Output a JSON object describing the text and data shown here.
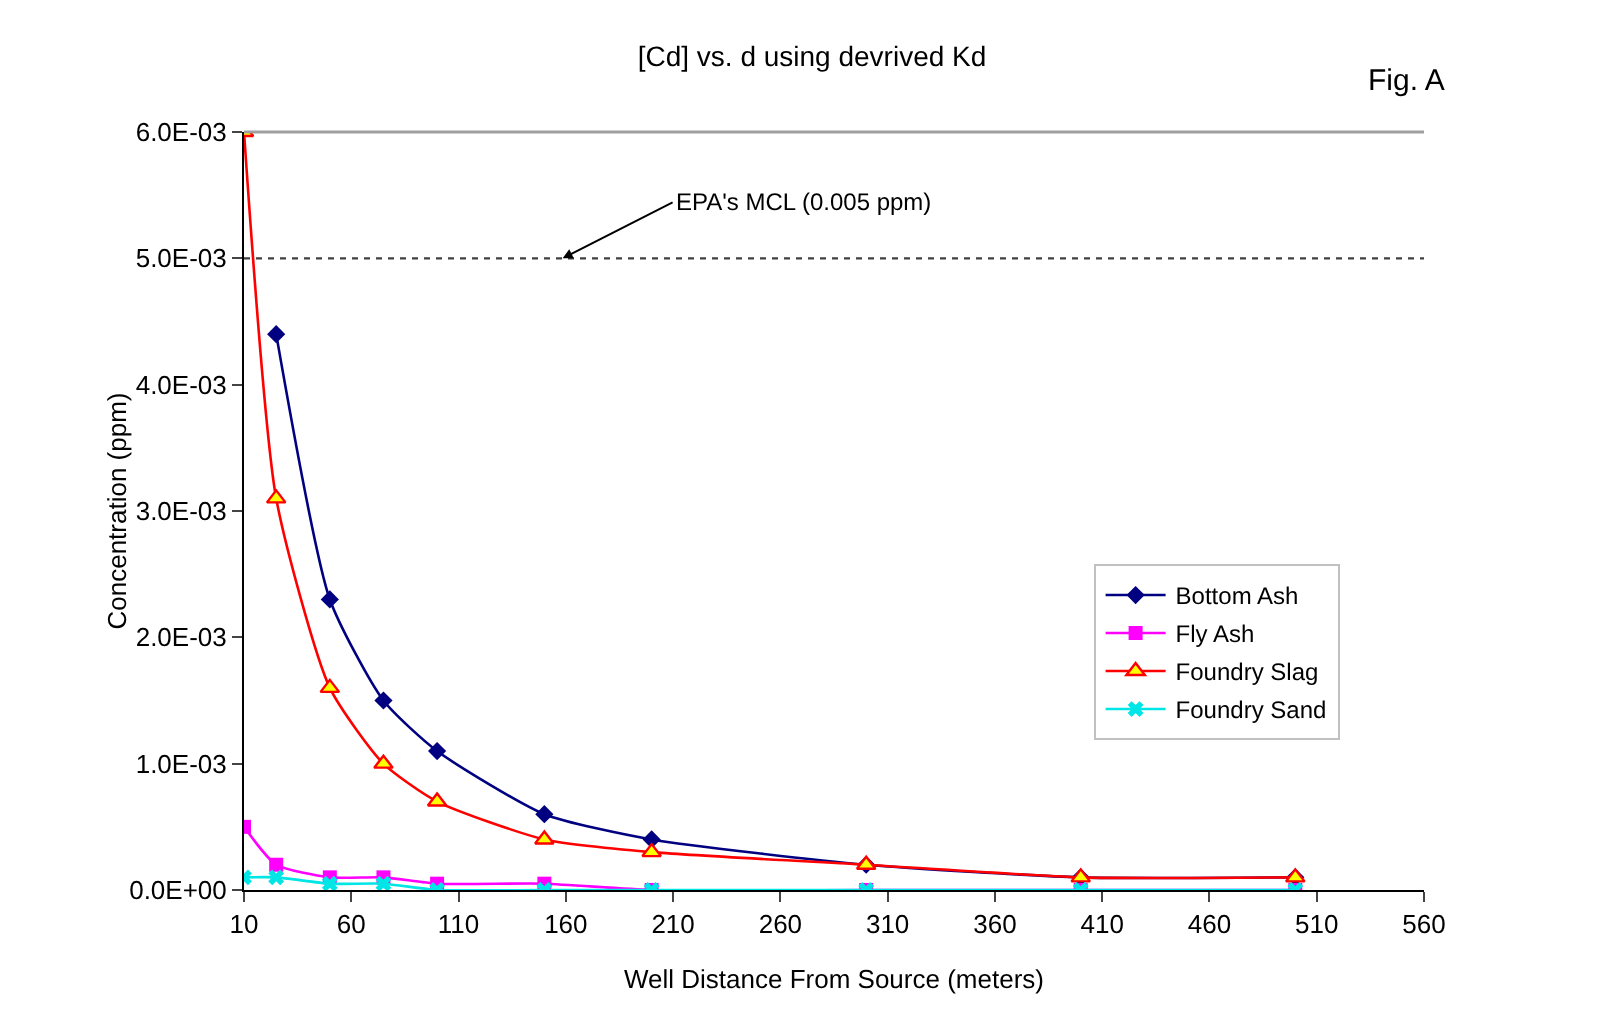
{
  "chart_data": {
    "type": "line",
    "title": "[Cd] vs. d using devrived Kd",
    "xlabel": "Well Distance From Source (meters)",
    "ylabel": "Concentration (ppm)",
    "x": [
      10,
      25,
      50,
      75,
      100,
      150,
      200,
      300,
      400,
      500
    ],
    "series": [
      {
        "name": "Bottom Ash",
        "color": "#000080",
        "marker": "diamond",
        "values": [
          null,
          0.0044,
          0.0023,
          0.0015,
          0.0011,
          0.0006,
          0.0004,
          0.0002,
          0.0001,
          0.0001
        ]
      },
      {
        "name": "Fly Ash",
        "color": "#ff00ff",
        "marker": "square",
        "values": [
          0.0005,
          0.0002,
          0.0001,
          0.0001,
          5e-05,
          5e-05,
          0,
          0,
          0,
          0
        ]
      },
      {
        "name": "Foundry Slag",
        "color": "#ff0000",
        "marker": "triangle",
        "values": [
          0.006,
          0.0031,
          0.0016,
          0.001,
          0.0007,
          0.0004,
          0.0003,
          0.0002,
          0.0001,
          0.0001
        ]
      },
      {
        "name": "Foundry Sand",
        "color": "#00e5e5",
        "marker": "cross",
        "values": [
          0.0001,
          0.0001,
          5e-05,
          5e-05,
          0,
          0,
          0,
          0,
          0,
          0
        ]
      }
    ],
    "xlim": [
      10,
      560
    ],
    "xticks": [
      10,
      60,
      110,
      160,
      210,
      260,
      310,
      360,
      410,
      460,
      510,
      560
    ],
    "ylim": [
      0,
      0.006
    ],
    "yticks": [
      {
        "value": 0,
        "label": "0.0E+00"
      },
      {
        "value": 0.001,
        "label": "1.0E-03"
      },
      {
        "value": 0.002,
        "label": "2.0E-03"
      },
      {
        "value": 0.003,
        "label": "3.0E-03"
      },
      {
        "value": 0.004,
        "label": "4.0E-03"
      },
      {
        "value": 0.005,
        "label": "5.0E-03"
      },
      {
        "value": 0.006,
        "label": "6.0E-03"
      }
    ],
    "ref_lines": [
      {
        "axis": "y",
        "value": 0.005,
        "label": "EPA's MCL (0.005 ppm)",
        "color": "#404040",
        "line_style": "dotted"
      }
    ],
    "annotations": [
      "Fig. A"
    ],
    "grid": false,
    "legend": "right",
    "line_style": "solid"
  }
}
